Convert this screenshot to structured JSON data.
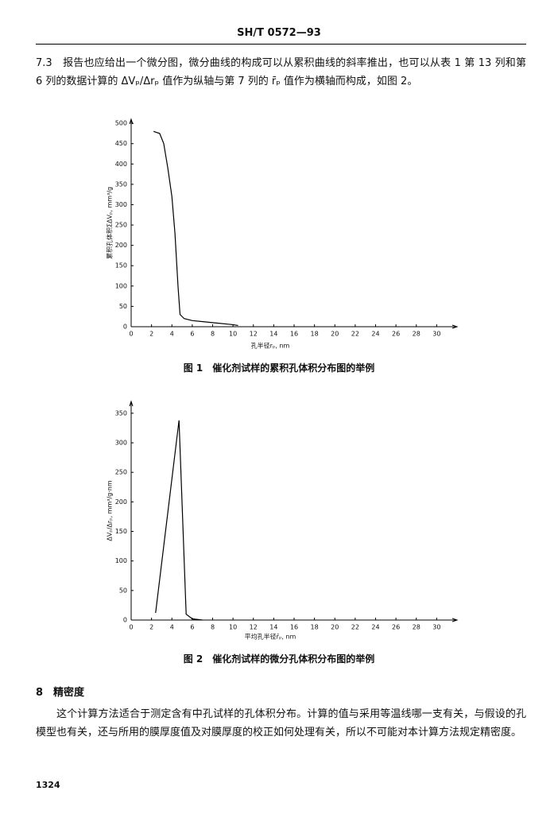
{
  "header": {
    "title": "SH/T 0572—93"
  },
  "paragraph_1": "7.3　报告也应给出一个微分图，微分曲线的构成可以从累积曲线的斜率推出，也可以从表 1 第 13 列和第 6 列的数据计算的 ΔVₚ/Δrₚ 值作为纵轴与第 7 列的 r̄ₚ 值作为横轴而构成，如图 2。",
  "chart_data": [
    {
      "type": "line",
      "title": "图 1　催化剂试样的累积孔体积分布图的举例",
      "x_label": "孔半径rₚ, nm",
      "y_label": "累积孔体积ΣΔVₚ, mm³/g",
      "x": [
        2.2,
        2.8,
        3.2,
        3.6,
        4.0,
        4.3,
        4.6,
        4.8,
        5.2,
        6,
        8,
        10,
        10.5
      ],
      "values": [
        480,
        475,
        450,
        390,
        320,
        230,
        100,
        30,
        20,
        15,
        10,
        5,
        3
      ],
      "color": "#000",
      "xlim": [
        0,
        32
      ],
      "ylim": [
        0,
        510
      ],
      "xticks": [
        0,
        2,
        4,
        6,
        8,
        10,
        12,
        14,
        16,
        18,
        20,
        22,
        24,
        26,
        28,
        30
      ],
      "yticks": [
        0,
        50,
        100,
        150,
        200,
        250,
        300,
        350,
        400,
        450,
        500
      ]
    },
    {
      "type": "line",
      "title": "图 2　催化剂试样的微分孔体积分布图的举例",
      "x_label": "平均孔半径r̄ₚ, nm",
      "y_label": "ΔVₚ/Δrₚ, mm³/g·nm",
      "x": [
        2.4,
        4.7,
        5.4,
        6,
        7
      ],
      "values": [
        12,
        338,
        10,
        2,
        0
      ],
      "color": "#000",
      "xlim": [
        0,
        32
      ],
      "ylim": [
        0,
        370
      ],
      "xticks": [
        0,
        2,
        4,
        6,
        8,
        10,
        12,
        14,
        16,
        18,
        20,
        22,
        24,
        26,
        28,
        30
      ],
      "yticks": [
        0,
        50,
        100,
        150,
        200,
        250,
        300,
        350
      ]
    }
  ],
  "section_8": {
    "heading": "8　精密度",
    "body": "这个计算方法适合于测定含有中孔试样的孔体积分布。计算的值与采用等温线哪一支有关，与假设的孔模型也有关，还与所用的膜厚度值及对膜厚度的校正如何处理有关，所以不可能对本计算方法规定精密度。"
  },
  "footer": {
    "page_number": "1324"
  }
}
